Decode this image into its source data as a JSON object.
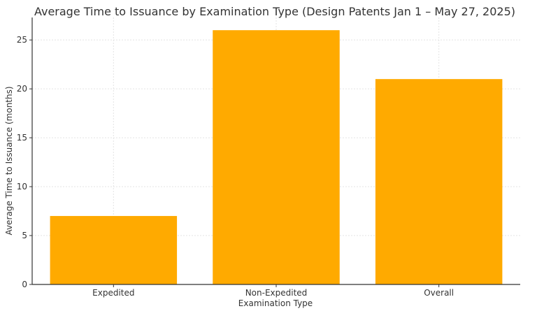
{
  "chart_data": {
    "type": "bar",
    "title": "Average Time to Issuance by Examination Type (Design Patents Jan 1 – May 27, 2025)",
    "xlabel": "Examination Type",
    "ylabel": "Average Time to Issuance (months)",
    "categories": [
      "Expedited",
      "Non-Expedited",
      "Overall"
    ],
    "values": [
      7,
      26,
      21
    ],
    "ylim": [
      0,
      27.3
    ],
    "yticks": [
      0,
      5,
      10,
      15,
      20,
      25
    ],
    "grid": true,
    "bar_color": "#FFAA00",
    "grid_color": "#e3e3e3",
    "axis_color": "#333333",
    "text_color": "#333333"
  }
}
